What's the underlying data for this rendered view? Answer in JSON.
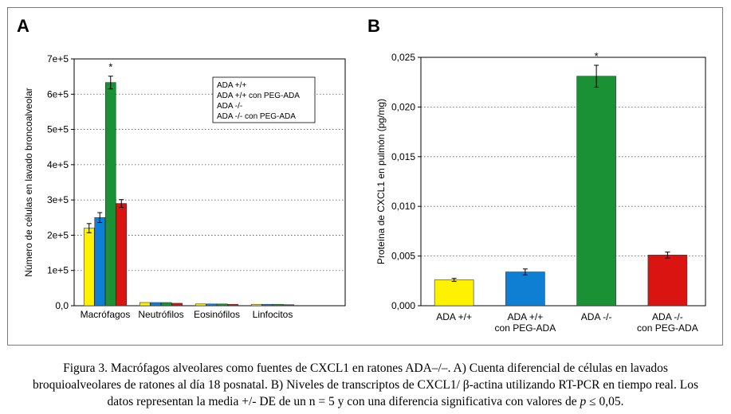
{
  "panels": {
    "a_letter": "A",
    "b_letter": "B"
  },
  "chart_data": [
    {
      "type": "bar",
      "panel": "A",
      "categories": [
        "Macrófagos",
        "Neutrófilos",
        "Eosinófilos",
        "Linfocitos"
      ],
      "series": [
        {
          "name": "ADA +/+",
          "color": "#fff200",
          "values": [
            220000,
            9000,
            5000,
            4000
          ],
          "errors": [
            13000,
            0,
            0,
            0
          ]
        },
        {
          "name": "ADA +/+ con PEG-ADA",
          "color": "#0f7fd3",
          "values": [
            250000,
            9000,
            5000,
            4000
          ],
          "errors": [
            14000,
            0,
            0,
            0
          ]
        },
        {
          "name": "ADA -/-",
          "color": "#1a9135",
          "values": [
            633000,
            9000,
            5000,
            4000
          ],
          "errors": [
            18000,
            0,
            0,
            0
          ]
        },
        {
          "name": "ADA -/- con PEG-ADA",
          "color": "#d91411",
          "values": [
            290000,
            7000,
            4000,
            3000
          ],
          "errors": [
            11000,
            0,
            0,
            0
          ]
        }
      ],
      "ylabel": "Número de células en lavado broncoalveolar",
      "yticks": [
        "0,0",
        "1e+5",
        "2e+5",
        "3e+5",
        "4e+5",
        "5e+5",
        "6e+5",
        "7e+5"
      ],
      "ylim": [
        0,
        700000
      ],
      "grid": "horizontal dotted",
      "legend": "top-right",
      "annotation": "*"
    },
    {
      "type": "bar",
      "panel": "B",
      "categories": [
        "ADA +/+",
        "ADA +/+ con PEG-ADA",
        "ADA -/-",
        "ADA -/- con PEG-ADA"
      ],
      "category_lines": [
        [
          "ADA +/+"
        ],
        [
          "ADA +/+",
          "con PEG-ADA"
        ],
        [
          "ADA -/-"
        ],
        [
          "ADA -/-",
          "con PEG-ADA"
        ]
      ],
      "values": [
        0.0026,
        0.0034,
        0.0231,
        0.0051
      ],
      "errors": [
        0.00015,
        0.0003,
        0.0011,
        0.0003
      ],
      "colors": [
        "#fff200",
        "#0f7fd3",
        "#1a9135",
        "#d91411"
      ],
      "ylabel": "Proteína de CXCL1 en pulmón  (pg/mg)",
      "yticks": [
        "0,000",
        "0,005",
        "0,010",
        "0,015",
        "0,020",
        "0,025"
      ],
      "ylim": [
        0,
        0.025
      ],
      "grid": "horizontal dotted",
      "annotation": "*"
    }
  ],
  "caption": {
    "line1": "Figura 3. Macrófagos alveolares como fuentes de CXCL1 en ratones ADA–/–. A) Cuenta diferencial de células en lavados",
    "line2": "broquioalveolares de ratones al día 18 posnatal. B) Niveles de transcriptos de CXCL1/ β-actina utilizando RT-PCR en tiempo real. Los",
    "line3_a": "datos representan la media +/- DE de un n = 5 y con una diferencia significativa con valores de ",
    "line3_p": "p",
    "line3_b": " ≤ 0,05."
  }
}
